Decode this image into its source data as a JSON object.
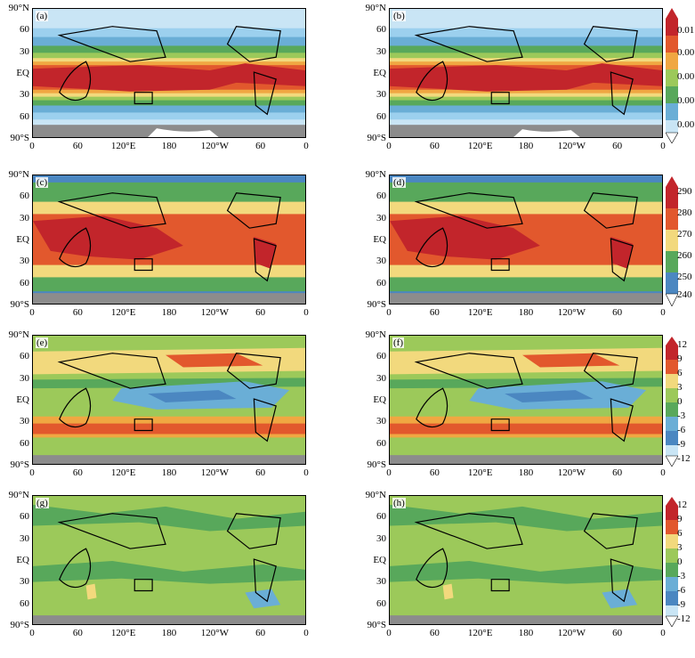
{
  "colors": {
    "land_gray": "#8c8c8c",
    "ice_white": "#ffffff",
    "palette": [
      "#c9e5f5",
      "#9cd0ee",
      "#6aaed6",
      "#4b87c1",
      "#58a85b",
      "#9cc95a",
      "#f2d97d",
      "#f0a742",
      "#e2582d",
      "#c2252b"
    ]
  },
  "map_axes": {
    "lat_labels": [
      "90°N",
      "60",
      "30",
      "EQ",
      "30",
      "60",
      "90°S"
    ],
    "lon_labels": [
      "0",
      "60",
      "120°E",
      "180",
      "120°W",
      "60",
      "0"
    ]
  },
  "panels": [
    {
      "label": "(a)",
      "field": "humidity"
    },
    {
      "label": "(b)",
      "field": "humidity"
    },
    {
      "label": "(c)",
      "field": "temperature"
    },
    {
      "label": "(d)",
      "field": "temperature"
    },
    {
      "label": "(e)",
      "field": "wind"
    },
    {
      "label": "(f)",
      "field": "wind"
    },
    {
      "label": "(g)",
      "field": "difference"
    },
    {
      "label": "(h)",
      "field": "difference"
    }
  ],
  "colorbars": [
    {
      "labels": [
        "0.01",
        "0.00",
        "0.00",
        "0.00",
        "0.00"
      ]
    },
    {
      "labels": [
        "290",
        "280",
        "270",
        "260",
        "250",
        "240"
      ]
    },
    {
      "labels": [
        "12",
        "9",
        "6",
        "3",
        "0",
        "-3",
        "-6",
        "-9",
        "-12"
      ]
    },
    {
      "labels": [
        "12",
        "9",
        "6",
        "3",
        "0",
        "-3",
        "-6",
        "-9",
        "-12"
      ]
    }
  ]
}
